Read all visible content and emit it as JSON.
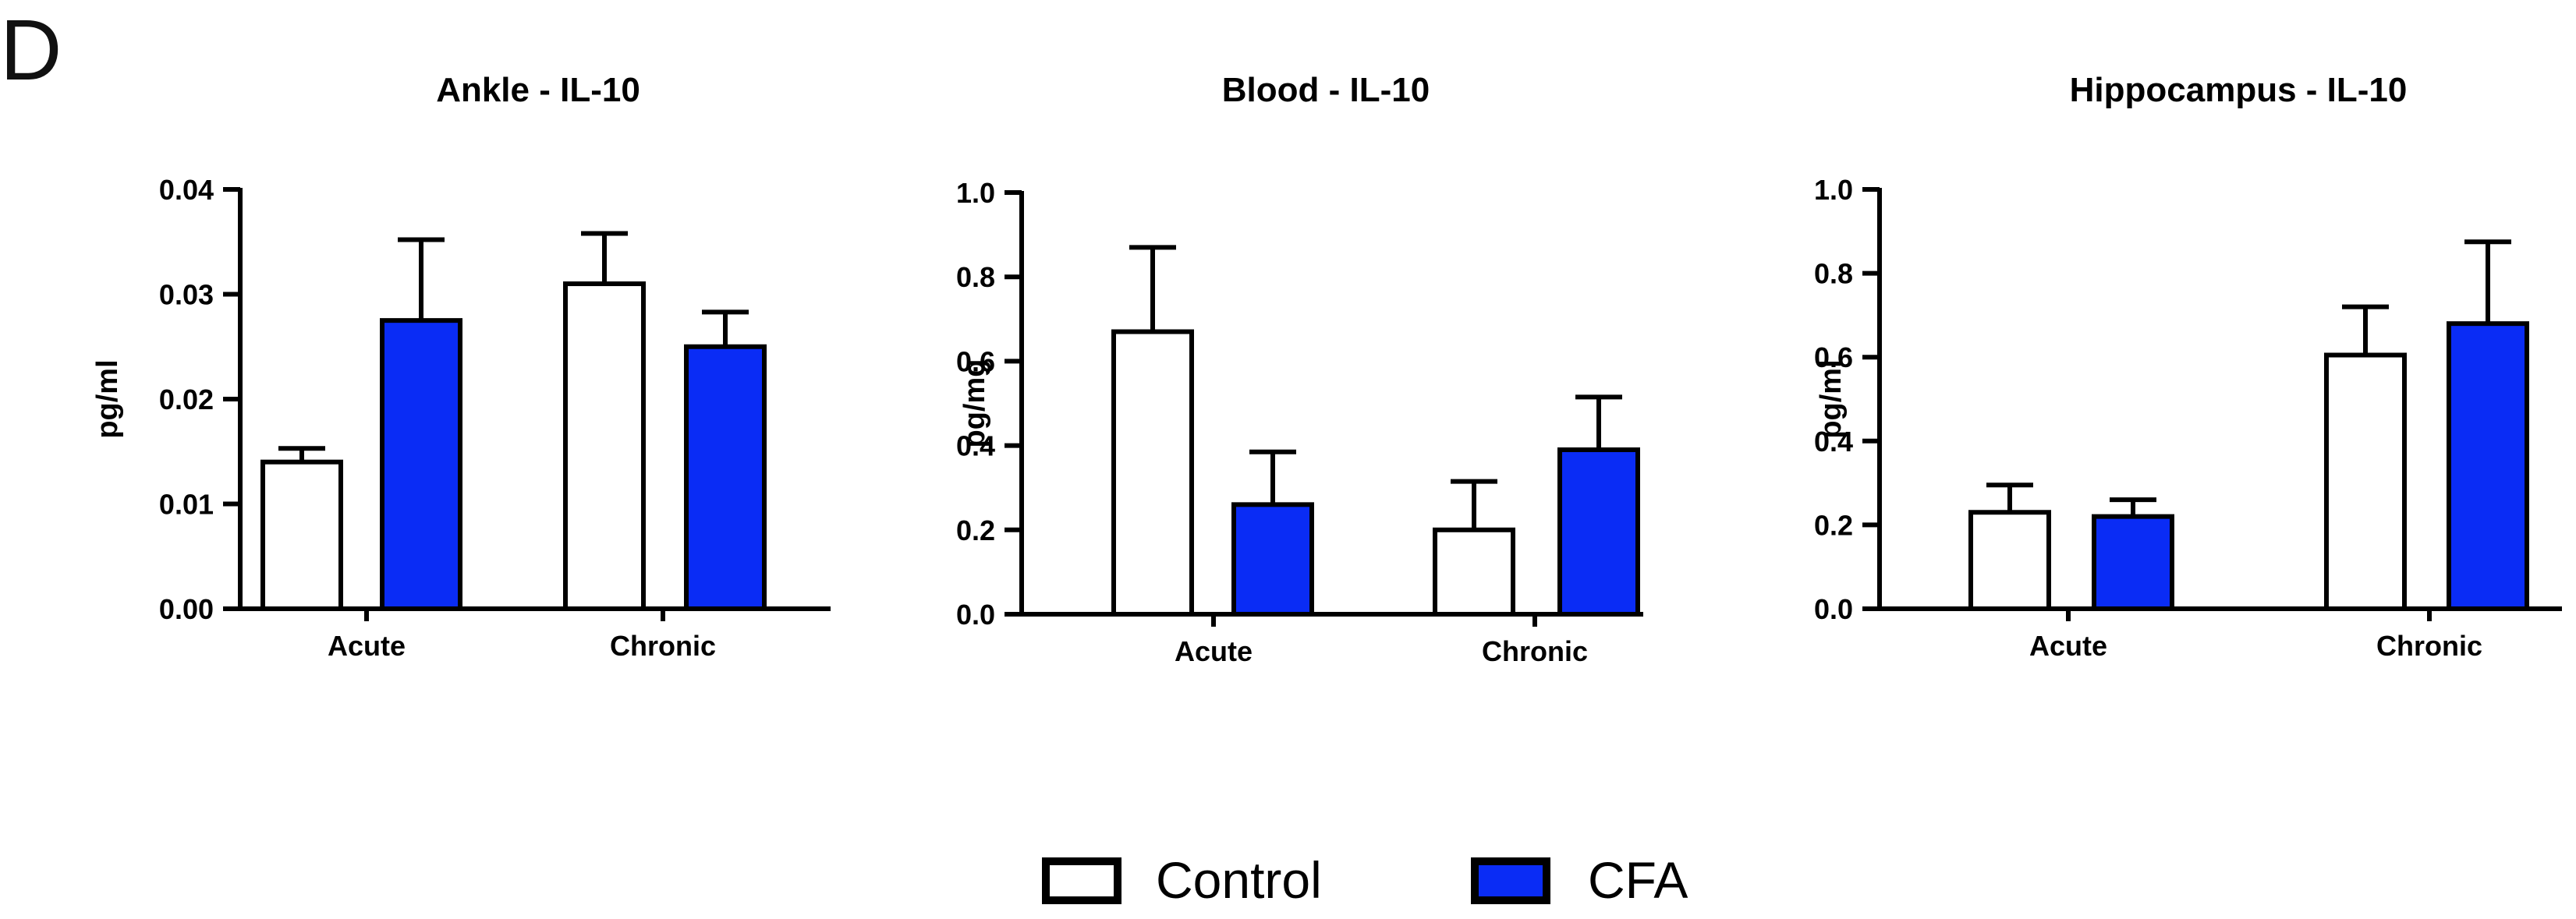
{
  "panel_label": "D",
  "colors": {
    "control": "#ffffff",
    "cfa": "#0a2cf5",
    "stroke": "#000000"
  },
  "legend": {
    "control_label": "Control",
    "cfa_label": "CFA"
  },
  "chart_data": [
    {
      "type": "bar",
      "title": "Ankle - IL-10",
      "ylabel": "pg/ml",
      "xlabel": "",
      "ylim": [
        0,
        0.04
      ],
      "yticks": [
        0.0,
        0.01,
        0.02,
        0.03,
        0.04
      ],
      "tick_labels": [
        "0.00",
        "0.01",
        "0.02",
        "0.03",
        "0.04"
      ],
      "categories": [
        "Acute",
        "Chronic"
      ],
      "series": [
        {
          "name": "Control",
          "values": [
            0.014,
            0.031
          ],
          "errors": [
            0.0013,
            0.0048
          ]
        },
        {
          "name": "CFA",
          "values": [
            0.0275,
            0.025
          ],
          "errors": [
            0.0077,
            0.0033
          ]
        }
      ]
    },
    {
      "type": "bar",
      "title": "Blood - IL-10",
      "ylabel": "pg/mg",
      "xlabel": "",
      "ylim": [
        0,
        1.0
      ],
      "yticks": [
        0.0,
        0.2,
        0.4,
        0.6,
        0.8,
        1.0
      ],
      "tick_labels": [
        "0.0",
        "0.2",
        "0.4",
        "0.6",
        "0.8",
        "1.0"
      ],
      "categories": [
        "Acute",
        "Chronic"
      ],
      "series": [
        {
          "name": "Control",
          "values": [
            0.67,
            0.2
          ],
          "errors": [
            0.2,
            0.115
          ]
        },
        {
          "name": "CFA",
          "values": [
            0.26,
            0.39
          ],
          "errors": [
            0.125,
            0.125
          ]
        }
      ]
    },
    {
      "type": "bar",
      "title": "Hippocampus -  IL-10",
      "ylabel": "pg/ml",
      "xlabel": "",
      "ylim": [
        0,
        1.0
      ],
      "yticks": [
        0.0,
        0.2,
        0.4,
        0.6,
        0.8,
        1.0
      ],
      "tick_labels": [
        "0.0",
        "0.2",
        "0.4",
        "0.6",
        "0.8",
        "1.0"
      ],
      "categories": [
        "Acute",
        "Chronic"
      ],
      "series": [
        {
          "name": "Control",
          "values": [
            0.23,
            0.605
          ],
          "errors": [
            0.065,
            0.115
          ]
        },
        {
          "name": "CFA",
          "values": [
            0.22,
            0.68
          ],
          "errors": [
            0.04,
            0.195
          ]
        }
      ]
    }
  ]
}
